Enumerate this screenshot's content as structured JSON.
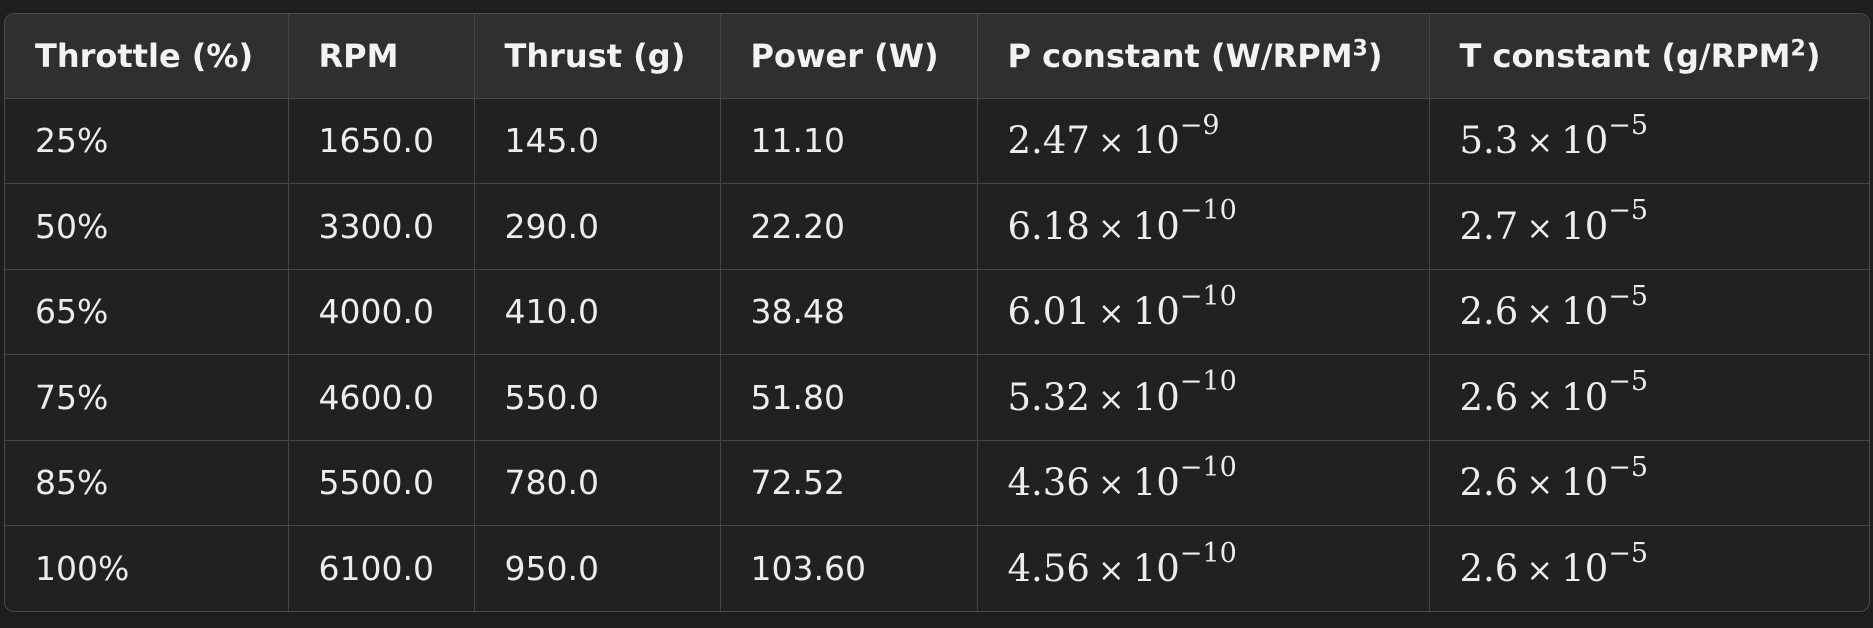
{
  "table": {
    "headers": [
      {
        "text": "Throttle (%)"
      },
      {
        "text": "RPM"
      },
      {
        "text": "Thrust (g)"
      },
      {
        "text": "Power (W)"
      },
      {
        "text": "P constant (W/RPM",
        "sup": "3",
        "tail": ")"
      },
      {
        "text": "T constant (g/RPM",
        "sup": "2",
        "tail": ")"
      }
    ],
    "rows": [
      {
        "throttle": "25%",
        "rpm": "1650.0",
        "thrust": "145.0",
        "power": "11.10",
        "p_mant": "2.47",
        "p_exp": "−9",
        "t_mant": "5.3",
        "t_exp": "−5"
      },
      {
        "throttle": "50%",
        "rpm": "3300.0",
        "thrust": "290.0",
        "power": "22.20",
        "p_mant": "6.18",
        "p_exp": "−10",
        "t_mant": "2.7",
        "t_exp": "−5"
      },
      {
        "throttle": "65%",
        "rpm": "4000.0",
        "thrust": "410.0",
        "power": "38.48",
        "p_mant": "6.01",
        "p_exp": "−10",
        "t_mant": "2.6",
        "t_exp": "−5"
      },
      {
        "throttle": "75%",
        "rpm": "4600.0",
        "thrust": "550.0",
        "power": "51.80",
        "p_mant": "5.32",
        "p_exp": "−10",
        "t_mant": "2.6",
        "t_exp": "−5"
      },
      {
        "throttle": "85%",
        "rpm": "5500.0",
        "thrust": "780.0",
        "power": "72.52",
        "p_mant": "4.36",
        "p_exp": "−10",
        "t_mant": "2.6",
        "t_exp": "−5"
      },
      {
        "throttle": "100%",
        "rpm": "6100.0",
        "thrust": "950.0",
        "power": "103.60",
        "p_mant": "4.56",
        "p_exp": "−10",
        "t_mant": "2.6",
        "t_exp": "−5"
      }
    ],
    "times_symbol": "×",
    "base": "10"
  }
}
